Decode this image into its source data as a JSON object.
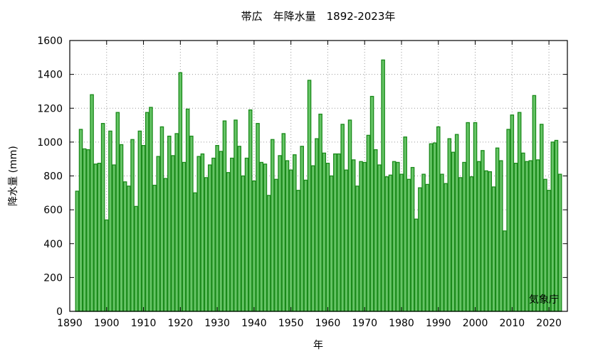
{
  "chart_data": {
    "type": "bar",
    "title": "帯広　年降水量　1892-2023年",
    "xlabel": "年",
    "ylabel": "降水量 (mm)",
    "annotation": "気象庁",
    "xlim": [
      1890,
      2025
    ],
    "ylim": [
      0,
      1600
    ],
    "xticks": [
      1890,
      1900,
      1910,
      1920,
      1930,
      1940,
      1950,
      1960,
      1970,
      1980,
      1990,
      2000,
      2010,
      2020
    ],
    "yticks": [
      0,
      200,
      400,
      600,
      800,
      1000,
      1200,
      1400,
      1600
    ],
    "grid": true,
    "colors": {
      "bar_fill": "#66c466",
      "bar_stroke": "#1a8a1a",
      "grid": "#9a9a9a",
      "frame": "#000000"
    },
    "series": [
      {
        "start_year": 1892,
        "end_year": 2023,
        "values": [
          710,
          1075,
          960,
          955,
          1280,
          870,
          875,
          1110,
          540,
          1065,
          865,
          1175,
          985,
          765,
          740,
          1015,
          620,
          1065,
          980,
          1175,
          1205,
          745,
          915,
          1090,
          785,
          1035,
          920,
          1050,
          1410,
          880,
          1195,
          1035,
          700,
          915,
          930,
          790,
          865,
          905,
          980,
          945,
          1125,
          820,
          905,
          1130,
          975,
          800,
          905,
          1190,
          770,
          1110,
          880,
          870,
          685,
          1015,
          780,
          920,
          1050,
          890,
          835,
          925,
          715,
          975,
          775,
          1365,
          860,
          1020,
          1165,
          935,
          875,
          800,
          930,
          930,
          1105,
          835,
          1130,
          895,
          740,
          885,
          880,
          1040,
          1270,
          955,
          865,
          1485,
          795,
          805,
          885,
          880,
          810,
          1030,
          780,
          850,
          545,
          730,
          810,
          750,
          990,
          995,
          1090,
          810,
          755,
          1020,
          940,
          1045,
          790,
          880,
          1115,
          795,
          1115,
          885,
          950,
          830,
          825,
          735,
          965,
          890,
          475,
          1075,
          1160,
          875,
          1175,
          935,
          885,
          890,
          1275,
          895,
          1105,
          780,
          715,
          1000,
          1010,
          810
        ]
      }
    ]
  }
}
